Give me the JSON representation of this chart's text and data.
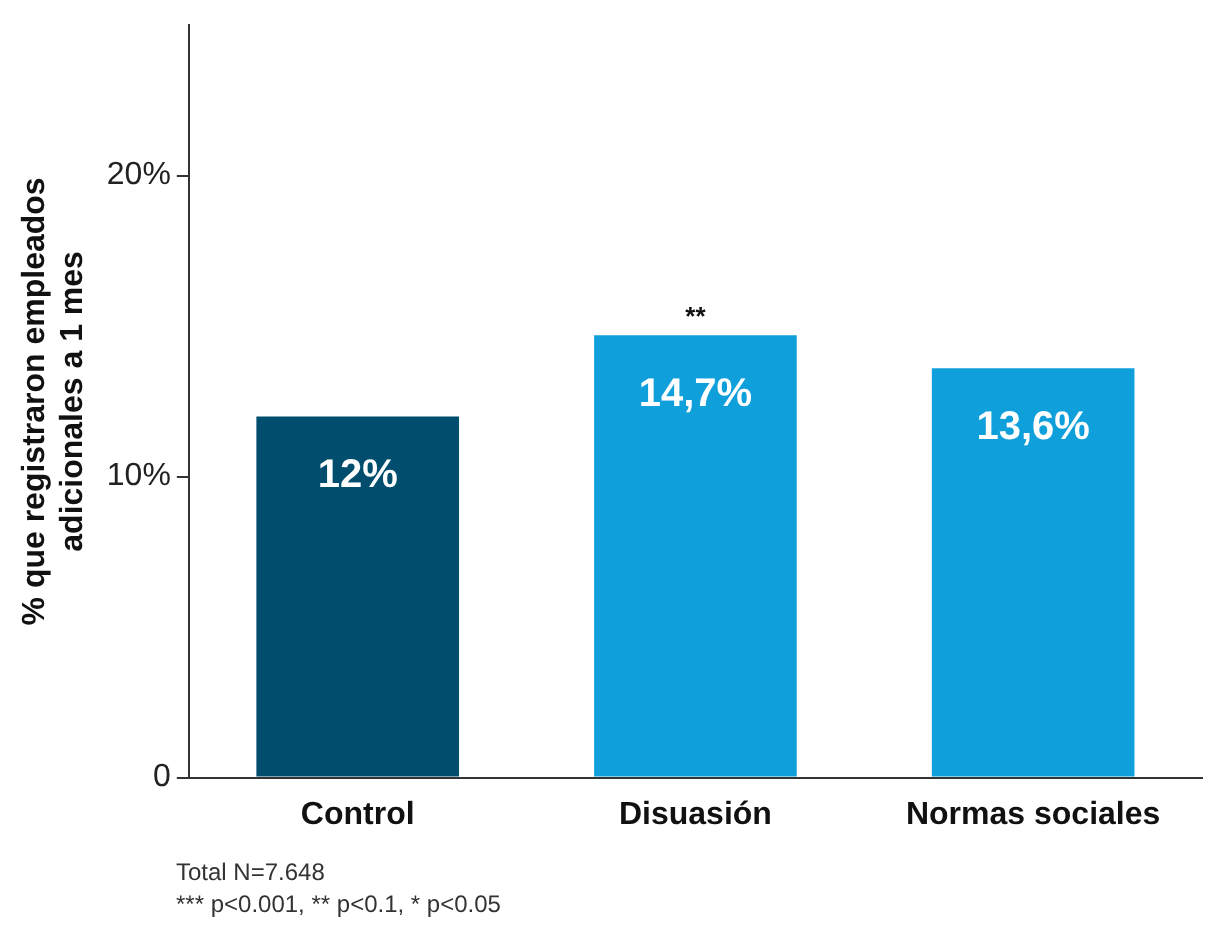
{
  "chart_data": {
    "type": "bar",
    "ylabel": "% que registraron empleados adicionales a 1 mes",
    "categories": [
      "Control",
      "Disuasión",
      "Normas sociales"
    ],
    "values": [
      12,
      14.7,
      13.6
    ],
    "colors": [
      "#004d6e",
      "#0f9fdb",
      "#0f9fdb"
    ],
    "value_labels": [
      "12%",
      "14,7%",
      "13,6%"
    ],
    "ylim": [
      0,
      25
    ],
    "yticks": [
      0,
      {
        "value": 10,
        "label": "10%"
      },
      {
        "value": 20,
        "label": "20%"
      }
    ],
    "grid": false,
    "legend": false,
    "annotations": [
      {
        "text": "**",
        "x": "Disuasión",
        "y": 14.7
      },
      "Total N=7.648",
      "*** p<0.001, ** p<0.1, * p<0.05"
    ]
  }
}
